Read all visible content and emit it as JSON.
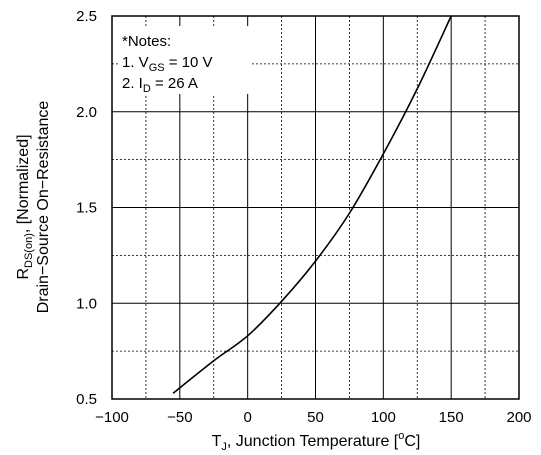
{
  "chart_data": {
    "type": "line",
    "title": "",
    "xlabel": {
      "main": "T",
      "sub": "J",
      "rest": ", Junction Temperature [",
      "sup": "o",
      "unit": "C]"
    },
    "ylabel": {
      "line1": {
        "main": "R",
        "sub": "DS(on)",
        "rest": ", [Normalized]"
      },
      "line2": "Drain−Source On−Resistance"
    },
    "xlim": [
      -100,
      200
    ],
    "ylim": [
      0.5,
      2.5
    ],
    "xticks": [
      -100,
      -50,
      0,
      50,
      100,
      150,
      200
    ],
    "xtick_labels": [
      "−100",
      "−50",
      "0",
      "50",
      "100",
      "150",
      "200"
    ],
    "yticks": [
      0.5,
      1.0,
      1.5,
      2.0,
      2.5
    ],
    "ytick_labels": [
      "0.5",
      "1.0",
      "1.5",
      "2.0",
      "2.5"
    ],
    "grid": true,
    "minor_grid": true,
    "series": [
      {
        "x": [
          -55,
          -25,
          0,
          25,
          50,
          75,
          100,
          125,
          150
        ],
        "y": [
          0.53,
          0.7,
          0.83,
          1.01,
          1.22,
          1.47,
          1.78,
          2.12,
          2.5
        ],
        "color": "#000000"
      }
    ],
    "annotations": [
      {
        "lines": [
          {
            "main": "*Notes:"
          },
          {
            "main": "1. V",
            "sub": "GS",
            "rest": " = 10 V"
          },
          {
            "main": "2. I",
            "sub": "D",
            "rest": " = 26 A"
          }
        ],
        "placement": "top-left"
      }
    ]
  }
}
